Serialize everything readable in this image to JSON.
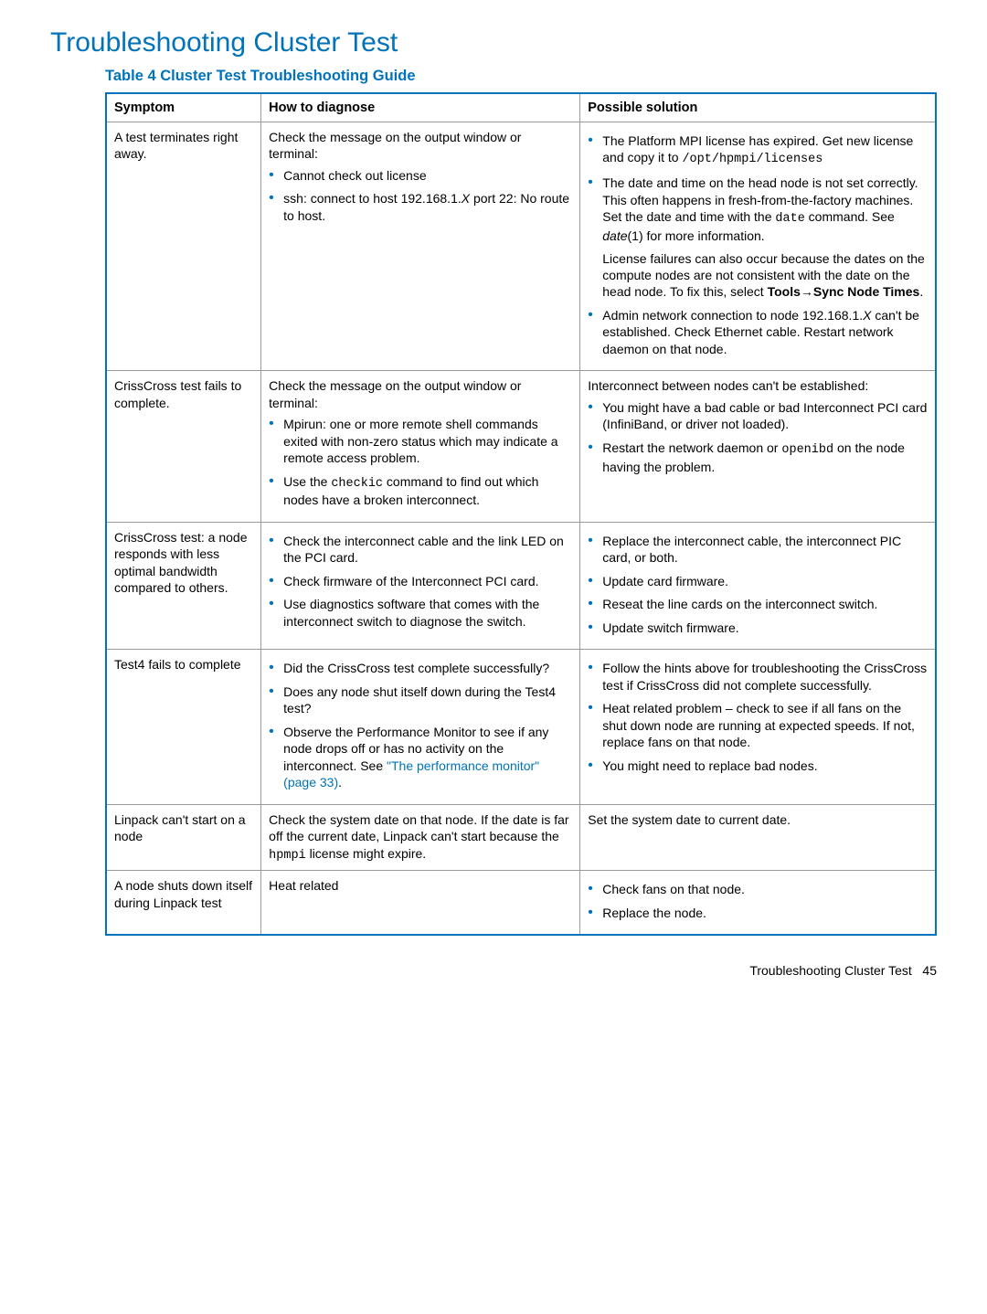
{
  "page": {
    "title": "Troubleshooting Cluster Test",
    "tableCaption": "Table 4 Cluster Test Troubleshooting Guide",
    "footerText": "Troubleshooting Cluster Test",
    "footerPage": "45"
  },
  "headers": {
    "symptom": "Symptom",
    "diagnose": "How to diagnose",
    "solution": "Possible solution"
  },
  "rows": {
    "r1": {
      "symptom": "A test terminates right away.",
      "diagIntro": "Check the message on the output window or terminal:",
      "diagItem1": "Cannot check out license",
      "diagItem2a": "ssh: connect to host 192.168.1.",
      "diagItem2x": "X",
      "diagItem2b": " port 22: No route to host.",
      "sol1a": "The Platform MPI license has expired. Get new license and copy it to ",
      "sol1path": "/opt/hpmpi/licenses",
      "sol2a": "The date and time on the head node is not set correctly. This often happens in fresh-from-the-factory machines. Set the date and time with the ",
      "sol2cmd": "date",
      "sol2b": " command. See ",
      "sol2ital": "date",
      "sol2c": "(1) for more information.",
      "sol2p2a": "License failures can also occur because the dates on the compute nodes are not consistent with the date on the head node. To fix this, select ",
      "sol2p2b": "Tools",
      "sol2p2arrow": "→",
      "sol2p2c": "Sync Node Times",
      "sol2p2d": ".",
      "sol3a": "Admin network connection to node 192.168.1.",
      "sol3x": "X",
      "sol3b": " can't be established. Check Ethernet cable. Restart network daemon on that node."
    },
    "r2": {
      "symptom": "CrissCross test fails to complete.",
      "diagIntro": "Check the message on the output window or terminal:",
      "diagItem1": "Mpirun: one or more remote shell commands exited with non-zero status which may indicate a remote access problem.",
      "diagItem2a": "Use the ",
      "diagItem2cmd": "checkic",
      "diagItem2b": " command to find out which nodes have a broken interconnect.",
      "solIntro": "Interconnect between nodes can't be established:",
      "sol1": "You might have a bad cable or bad Interconnect PCI card (InfiniBand, or driver not loaded).",
      "sol2a": "Restart the network daemon or ",
      "sol2cmd": "openibd",
      "sol2b": " on the node having the problem."
    },
    "r3": {
      "symptom": "CrissCross test: a node responds with less optimal bandwidth compared to others.",
      "diag1": "Check the interconnect cable and the link LED on the PCI card.",
      "diag2": "Check firmware of the Interconnect PCI card.",
      "diag3": "Use diagnostics software that comes with the interconnect switch to diagnose the switch.",
      "sol1": "Replace the interconnect cable, the interconnect PIC card, or both.",
      "sol2": "Update card firmware.",
      "sol3": "Reseat the line cards on the interconnect switch.",
      "sol4": "Update switch firmware."
    },
    "r4": {
      "symptom": "Test4 fails to complete",
      "diag1": "Did the CrissCross test complete successfully?",
      "diag2": "Does any node shut itself down during the Test4 test?",
      "diag3a": "Observe the Performance Monitor to see if any node drops off or has no activity on the interconnect. See ",
      "diag3link": "\"The performance monitor\" (page 33)",
      "diag3b": ".",
      "sol1": "Follow the hints above for troubleshooting the CrissCross test if CrissCross did not complete successfully.",
      "sol2": "Heat related problem – check to see if all fans on the shut down node are running at expected speeds. If not, replace fans on that node.",
      "sol3": "You might need to replace bad nodes."
    },
    "r5": {
      "symptom": "Linpack can't start on a node",
      "diaga": "Check the system date on that node. If the date is far off the current date, Linpack can't start because the ",
      "diagcmd": "hpmpi",
      "diagb": " license might expire.",
      "sol": "Set the system date to current date."
    },
    "r6": {
      "symptom": "A node shuts down itself during Linpack test",
      "diag": "Heat related",
      "sol1": "Check fans on that node.",
      "sol2": "Replace the node."
    }
  }
}
